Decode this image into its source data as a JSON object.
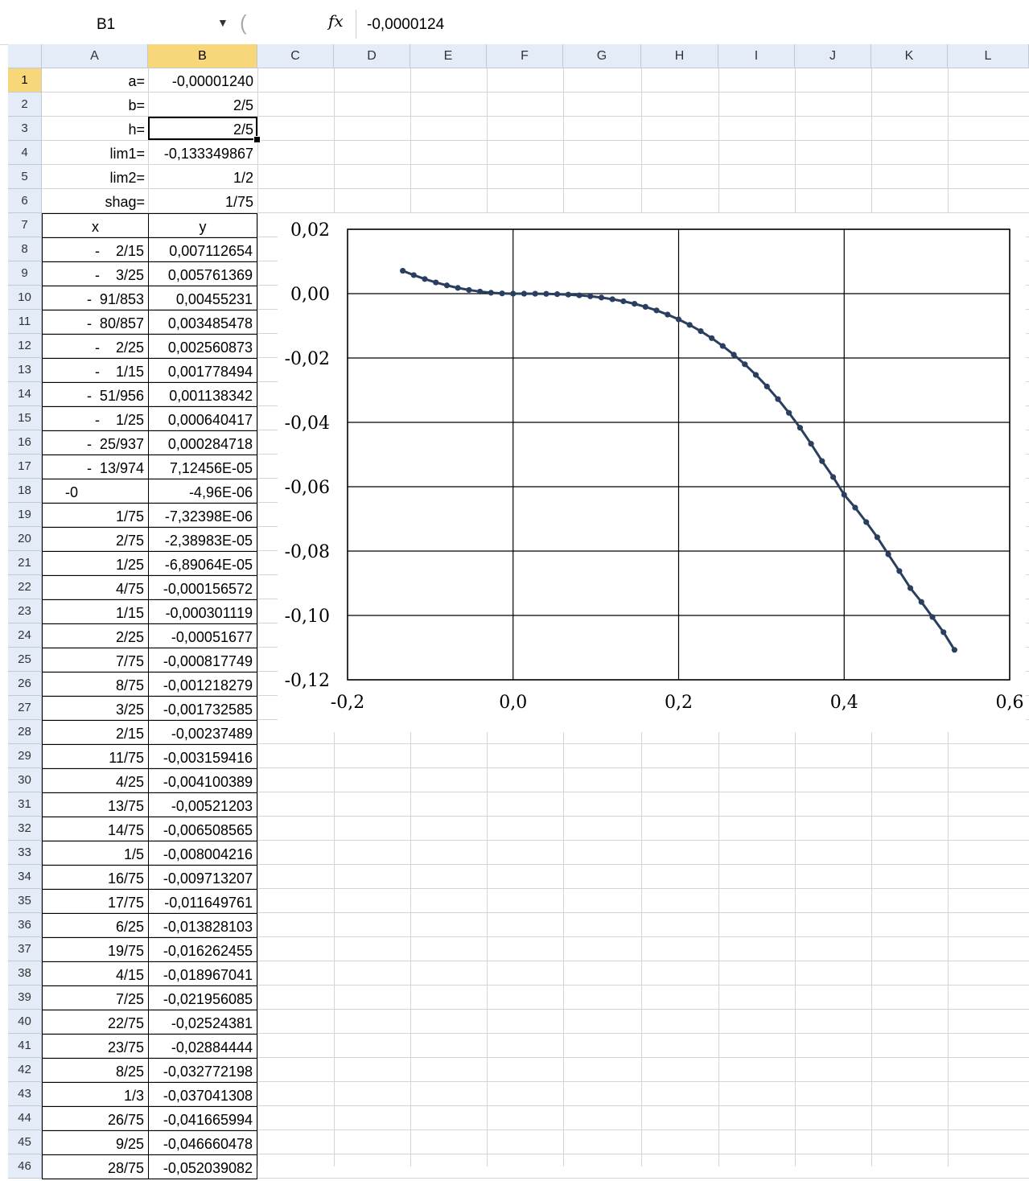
{
  "formula_bar": {
    "name_box": "B1",
    "fx_label": "fx",
    "formula": "-0,0000124"
  },
  "columns": [
    "A",
    "B",
    "C",
    "D",
    "E",
    "F",
    "G",
    "H",
    "I",
    "J",
    "K",
    "L"
  ],
  "selected_column": "B",
  "selected_row": "1",
  "rows": [
    {
      "n": "1",
      "a": "a=",
      "b": "-0,00001240"
    },
    {
      "n": "2",
      "a": "b=",
      "b": "2/5"
    },
    {
      "n": "3",
      "a": "h=",
      "b": "2/5"
    },
    {
      "n": "4",
      "a": "lim1=",
      "b": "-0,133349867"
    },
    {
      "n": "5",
      "a": "lim2=",
      "b": "1/2"
    },
    {
      "n": "6",
      "a": "shag=",
      "b": "1/75"
    },
    {
      "n": "7",
      "a": "x",
      "b": "y"
    },
    {
      "n": "8",
      "a": "-    2/15",
      "b": "0,007112654"
    },
    {
      "n": "9",
      "a": "-    3/25",
      "b": "0,005761369"
    },
    {
      "n": "10",
      "a": "-  91/853",
      "b": "0,00455231"
    },
    {
      "n": "11",
      "a": "-  80/857",
      "b": "0,003485478"
    },
    {
      "n": "12",
      "a": "-    2/25",
      "b": "0,002560873"
    },
    {
      "n": "13",
      "a": "-    1/15",
      "b": "0,001778494"
    },
    {
      "n": "14",
      "a": "-  51/956",
      "b": "0,001138342"
    },
    {
      "n": "15",
      "a": "-    1/25",
      "b": "0,000640417"
    },
    {
      "n": "16",
      "a": "-  25/937",
      "b": "0,000284718"
    },
    {
      "n": "17",
      "a": "-  13/974",
      "b": "7,12456E-05"
    },
    {
      "n": "18",
      "a": "-0",
      "b": "-4,96E-06"
    },
    {
      "n": "19",
      "a": "1/75",
      "b": "-7,32398E-06"
    },
    {
      "n": "20",
      "a": "2/75",
      "b": "-2,38983E-05"
    },
    {
      "n": "21",
      "a": "1/25",
      "b": "-6,89064E-05"
    },
    {
      "n": "22",
      "a": "4/75",
      "b": "-0,000156572"
    },
    {
      "n": "23",
      "a": "1/15",
      "b": "-0,000301119"
    },
    {
      "n": "24",
      "a": "2/25",
      "b": "-0,00051677"
    },
    {
      "n": "25",
      "a": "7/75",
      "b": "-0,000817749"
    },
    {
      "n": "26",
      "a": "8/75",
      "b": "-0,001218279"
    },
    {
      "n": "27",
      "a": "3/25",
      "b": "-0,001732585"
    },
    {
      "n": "28",
      "a": "2/15",
      "b": "-0,00237489"
    },
    {
      "n": "29",
      "a": "11/75",
      "b": "-0,003159416"
    },
    {
      "n": "30",
      "a": "4/25",
      "b": "-0,004100389"
    },
    {
      "n": "31",
      "a": "13/75",
      "b": "-0,00521203"
    },
    {
      "n": "32",
      "a": "14/75",
      "b": "-0,006508565"
    },
    {
      "n": "33",
      "a": "1/5",
      "b": "-0,008004216"
    },
    {
      "n": "34",
      "a": "16/75",
      "b": "-0,009713207"
    },
    {
      "n": "35",
      "a": "17/75",
      "b": "-0,011649761"
    },
    {
      "n": "36",
      "a": "6/25",
      "b": "-0,013828103"
    },
    {
      "n": "37",
      "a": "19/75",
      "b": "-0,016262455"
    },
    {
      "n": "38",
      "a": "4/15",
      "b": "-0,018967041"
    },
    {
      "n": "39",
      "a": "7/25",
      "b": "-0,021956085"
    },
    {
      "n": "40",
      "a": "22/75",
      "b": "-0,02524381"
    },
    {
      "n": "41",
      "a": "23/75",
      "b": "-0,02884444"
    },
    {
      "n": "42",
      "a": "8/25",
      "b": "-0,032772198"
    },
    {
      "n": "43",
      "a": "1/3",
      "b": "-0,037041308"
    },
    {
      "n": "44",
      "a": "26/75",
      "b": "-0,041665994"
    },
    {
      "n": "45",
      "a": "9/25",
      "b": "-0,046660478"
    },
    {
      "n": "46",
      "a": "28/75",
      "b": "-0,052039082"
    }
  ],
  "chart_data": {
    "type": "scatter",
    "title": "",
    "xlabel": "",
    "ylabel": "",
    "xlim": [
      -0.2,
      0.6
    ],
    "ylim": [
      -0.12,
      0.02
    ],
    "x_ticks": [
      -0.2,
      0.0,
      0.2,
      0.4,
      0.6
    ],
    "x_tick_labels": [
      "-0,2",
      "0,0",
      "0,2",
      "0,4",
      "0,6"
    ],
    "y_ticks": [
      0.02,
      0.0,
      -0.02,
      -0.04,
      -0.06,
      -0.08,
      -0.1,
      -0.12
    ],
    "y_tick_labels": [
      "0,02",
      "0,00",
      "-0,02",
      "-0,04",
      "-0,06",
      "-0,08",
      "-0,10",
      "-0,12"
    ],
    "grid": true,
    "legend": "none",
    "line_color": "#2a3f5f",
    "series": [
      {
        "x": [
          -0.1333,
          -0.12,
          -0.1067,
          -0.0933,
          -0.08,
          -0.0667,
          -0.0533,
          -0.04,
          -0.0267,
          -0.0133,
          0,
          0.0133,
          0.0267,
          0.04,
          0.0533,
          0.0667,
          0.08,
          0.0933,
          0.1067,
          0.12,
          0.1333,
          0.1467,
          0.16,
          0.1733,
          0.1867,
          0.2,
          0.2133,
          0.2267,
          0.24,
          0.2533,
          0.2667,
          0.28,
          0.2933,
          0.3067,
          0.32,
          0.3333,
          0.3467,
          0.36,
          0.3733,
          0.3867,
          0.4,
          0.4133,
          0.4267,
          0.44,
          0.4533,
          0.4667,
          0.48,
          0.4933,
          0.5067,
          0.52,
          0.5333
        ],
        "y": [
          0.007113,
          0.005761,
          0.004552,
          0.003485,
          0.002561,
          0.001778,
          0.001138,
          0.00064,
          0.000285,
          7.12e-05,
          -5e-06,
          -7.3e-06,
          -2.39e-05,
          -6.89e-05,
          -0.000157,
          -0.000301,
          -0.000517,
          -0.000818,
          -0.001218,
          -0.001733,
          -0.002375,
          -0.003159,
          -0.0041,
          -0.005212,
          -0.006509,
          -0.008004,
          -0.009713,
          -0.01165,
          -0.013828,
          -0.016262,
          -0.018967,
          -0.021956,
          -0.025244,
          -0.028844,
          -0.032772,
          -0.037041,
          -0.041666,
          -0.04666,
          -0.052039,
          -0.057,
          -0.0625,
          -0.0665,
          -0.071,
          -0.0757,
          -0.081,
          -0.0862,
          -0.0915,
          -0.0958,
          -0.1005,
          -0.1052,
          -0.1107
        ]
      }
    ]
  }
}
